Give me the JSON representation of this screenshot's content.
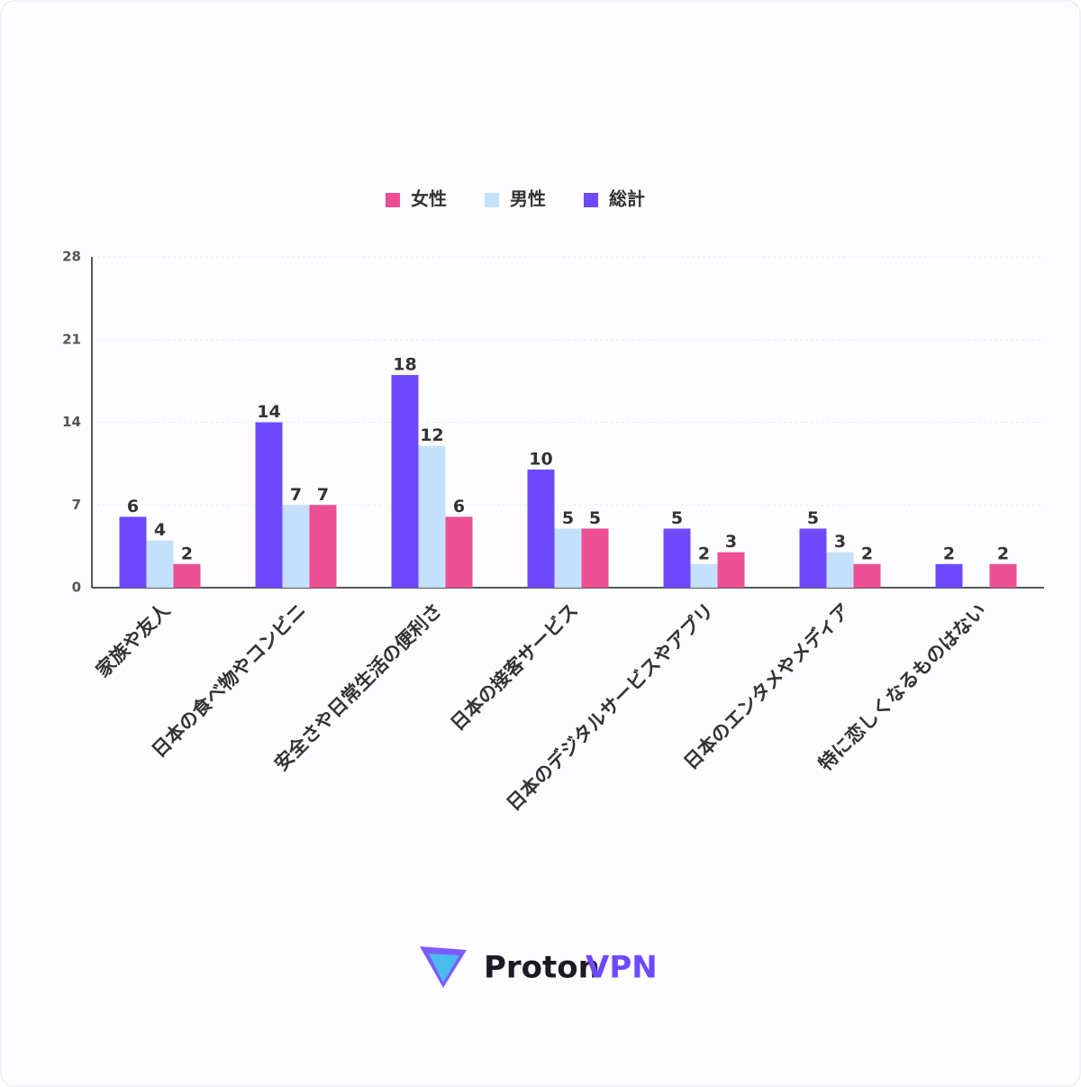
{
  "chart_data": {
    "type": "bar",
    "categories": [
      "家族や友人",
      "日本の食べ物やコンビニ",
      "安全さや日常生活の便利さ",
      "日本の接客サービス",
      "日本のデジタルサービスやアプリ",
      "日本のエンタメやメディア",
      "特に恋しくなるものはない"
    ],
    "series": [
      {
        "name": "女性",
        "color": "#ec4f92",
        "values": [
          2,
          7,
          6,
          5,
          3,
          2,
          2
        ]
      },
      {
        "name": "男性",
        "color": "#c5e0fa",
        "values": [
          4,
          7,
          12,
          5,
          2,
          3,
          null
        ]
      },
      {
        "name": "総計",
        "color": "#6d4aff",
        "values": [
          6,
          14,
          18,
          10,
          5,
          5,
          2
        ]
      }
    ],
    "ylim": [
      0,
      28
    ],
    "yticks": [
      0,
      7,
      14,
      21,
      28
    ],
    "grid": true,
    "legend": "top"
  },
  "logo": {
    "name": "Proton",
    "product": "VPN"
  }
}
